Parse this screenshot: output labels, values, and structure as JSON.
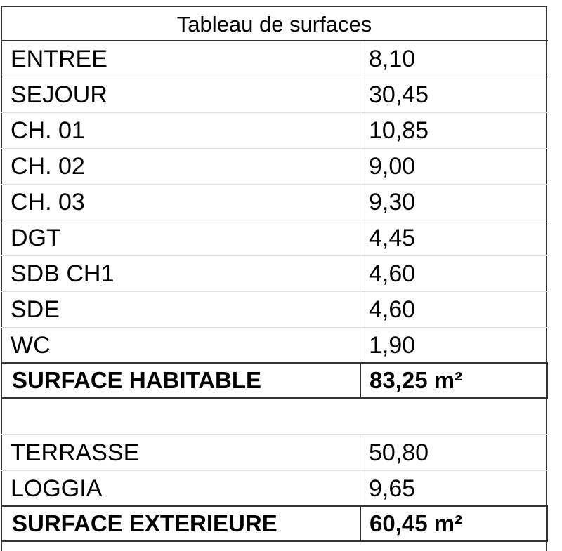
{
  "title": "Tableau de surfaces",
  "rooms": [
    {
      "label": "ENTREE",
      "value": "8,10"
    },
    {
      "label": "SEJOUR",
      "value": "30,45"
    },
    {
      "label": "CH. 01",
      "value": "10,85"
    },
    {
      "label": "CH. 02",
      "value": "9,00"
    },
    {
      "label": "CH. 03",
      "value": "9,30"
    },
    {
      "label": "DGT",
      "value": "4,45"
    },
    {
      "label": "SDB CH1",
      "value": "4,60"
    },
    {
      "label": "SDE",
      "value": "4,60"
    },
    {
      "label": "WC",
      "value": "1,90"
    }
  ],
  "habitable": {
    "label": "SURFACE HABITABLE",
    "value": "83,25 m²"
  },
  "exterior": [
    {
      "label": "TERRASSE",
      "value": "50,80"
    },
    {
      "label": "LOGGIA",
      "value": "9,65"
    }
  ],
  "exterior_total": {
    "label": "SURFACE EXTERIEURE",
    "value": "60,45 m²"
  }
}
